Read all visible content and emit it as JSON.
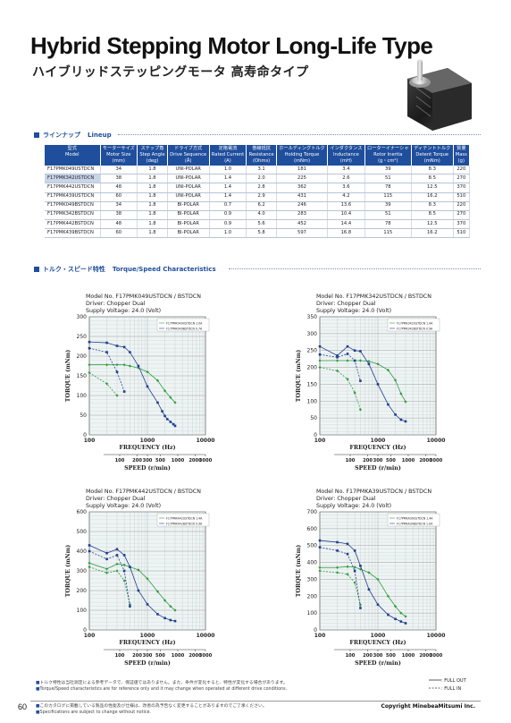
{
  "header": {
    "title_en": "Hybrid Stepping Motor Long-Life Type",
    "title_jp": "ハイブリッドステッピングモータ 高寿命タイプ",
    "photo_icon": "stepping-motor-photo"
  },
  "lineup": {
    "heading_jp": "ラインナップ",
    "heading_en": "Lineup",
    "columns": [
      {
        "jp": "型式",
        "en": "Model",
        "unit": ""
      },
      {
        "jp": "モーターサイズ",
        "en": "Motor Size",
        "unit": "(mm)"
      },
      {
        "jp": "ステップ角",
        "en": "Step Angle",
        "unit": "(deg)"
      },
      {
        "jp": "ドライブ方式",
        "en": "Drive Sequence",
        "unit": "(Ā)"
      },
      {
        "jp": "定格電流",
        "en": "Rated Current",
        "unit": "(A)"
      },
      {
        "jp": "巻線抵抗",
        "en": "Resistance",
        "unit": "(Ohms)"
      },
      {
        "jp": "ホールディングトルク",
        "en": "Holding Torque",
        "unit": "(mNm)"
      },
      {
        "jp": "インダクタンス",
        "en": "Inductance",
        "unit": "(mH)"
      },
      {
        "jp": "ローターイナーシャ",
        "en": "Rotor Inertia",
        "unit": "(g・cm²)"
      },
      {
        "jp": "ディテントトルク",
        "en": "Detent Torque",
        "unit": "(mNm)"
      },
      {
        "jp": "質量",
        "en": "Mass",
        "unit": "(g)"
      }
    ],
    "rows": [
      [
        "F17PMK049USTDCN",
        "34",
        "1.8",
        "UNI-POLAR",
        "1.0",
        "3.1",
        "181",
        "3.4",
        "39",
        "8.3",
        "220"
      ],
      [
        "F17PMK342USTDCN",
        "38",
        "1.8",
        "UNI-POLAR",
        "1.4",
        "2.0",
        "225",
        "2.6",
        "51",
        "8.5",
        "270"
      ],
      [
        "F17PMK442USTDCN",
        "48",
        "1.8",
        "UNI-POLAR",
        "1.4",
        "2.8",
        "362",
        "3.6",
        "78",
        "12.5",
        "370"
      ],
      [
        "F17PMK439USTDCN",
        "60",
        "1.8",
        "UNI-POLAR",
        "1.4",
        "2.9",
        "431",
        "4.2",
        "115",
        "16.2",
        "510"
      ],
      [
        "F17PMK049BSTDCN",
        "34",
        "1.8",
        "BI-POLAR",
        "0.7",
        "6.2",
        "246",
        "13.6",
        "39",
        "8.3",
        "220"
      ],
      [
        "F17PMK342BSTDCN",
        "38",
        "1.8",
        "BI-POLAR",
        "0.9",
        "4.0",
        "283",
        "10.4",
        "51",
        "8.5",
        "270"
      ],
      [
        "F17PMK442BSTDCN",
        "48",
        "1.8",
        "BI-POLAR",
        "0.9",
        "5.6",
        "452",
        "14.4",
        "78",
        "12.5",
        "370"
      ],
      [
        "F17PMK439BSTDCN",
        "60",
        "1.8",
        "BI-POLAR",
        "1.0",
        "5.8",
        "597",
        "16.8",
        "115",
        "16.2",
        "510"
      ]
    ],
    "highlight_row": 1
  },
  "torque_section": {
    "heading_jp": "トルク・スピード特性",
    "heading_en": "Torque/Speed Characteristics"
  },
  "colors": {
    "brand": "#1f4e9c",
    "uni_series": "#2e9b3e",
    "bi_series": "#1f3d8f"
  },
  "chart_data": [
    {
      "type": "line",
      "model": "Model No. F17PMK049USTDCN / BSTDCN",
      "driver": "Driver: Chopper Dual",
      "voltage": "Supply Voltage: 24.0 (Volt)",
      "xlabel": "FREQUENCY (Hz)",
      "x2label": "SPEED (r/min)",
      "ylabel": "TORQUE (mNm)",
      "x_scale": "log",
      "xlim": [
        100,
        10000
      ],
      "ylim": [
        0,
        300
      ],
      "yticks": [
        0,
        50,
        100,
        150,
        200,
        250,
        300
      ],
      "xticks": [
        "100",
        "1000",
        "10000"
      ],
      "speed_ticks": [
        "100",
        "200",
        "300",
        "500",
        "1000",
        "2000",
        "3000"
      ],
      "speed_values": [
        100,
        200,
        300,
        500,
        1000,
        2000,
        3000
      ],
      "legend": [
        "F17PMK049USTDCN 1.0A",
        "F17PMK049BSTDCN 0.7A"
      ],
      "series": [
        {
          "name": "UNI FULL OUT",
          "x": [
            100,
            200,
            300,
            400,
            500,
            700,
            1000,
            1500,
            2000,
            2500,
            3000
          ],
          "y": [
            178,
            178,
            178,
            178,
            175,
            170,
            160,
            138,
            112,
            95,
            82
          ]
        },
        {
          "name": "UNI FULL IN",
          "x": [
            100,
            200,
            300
          ],
          "y": [
            158,
            130,
            100
          ]
        },
        {
          "name": "BI FULL OUT",
          "x": [
            100,
            200,
            300,
            400,
            500,
            700,
            1000,
            1500,
            1800,
            2000,
            2200,
            2500,
            2800,
            3000
          ],
          "y": [
            236,
            234,
            226,
            223,
            210,
            175,
            123,
            82,
            60,
            48,
            40,
            33,
            27,
            23
          ]
        },
        {
          "name": "BI FULL IN",
          "x": [
            100,
            200,
            300,
            400
          ],
          "y": [
            220,
            210,
            160,
            110
          ]
        }
      ]
    },
    {
      "type": "line",
      "model": "Model No. F17PMK342USTDCN / BSTDCN",
      "driver": "Driver: Chopper Dual",
      "voltage": "Supply Voltage: 24.0 (Volt)",
      "xlabel": "FREQUENCY (Hz)",
      "x2label": "SPEED (r/min)",
      "ylabel": "TORQUE (mNm)",
      "x_scale": "log",
      "xlim": [
        100,
        10000
      ],
      "ylim": [
        0,
        350
      ],
      "yticks": [
        0,
        50,
        100,
        150,
        200,
        250,
        300,
        350
      ],
      "xticks": [
        "100",
        "1000",
        "10000"
      ],
      "speed_ticks": [
        "100",
        "200",
        "300",
        "500",
        "1000",
        "2000",
        "3000"
      ],
      "speed_values": [
        100,
        200,
        300,
        500,
        1000,
        2000,
        3000
      ],
      "legend": [
        "F17PMK342USTDCN 1.4A",
        "F17PMK342BSTDCN 0.9A"
      ],
      "series": [
        {
          "name": "UNI FULL OUT",
          "x": [
            100,
            200,
            300,
            400,
            500,
            700,
            1000,
            1500,
            2000,
            2500,
            3000
          ],
          "y": [
            220,
            220,
            220,
            220,
            220,
            218,
            210,
            192,
            162,
            122,
            98
          ]
        },
        {
          "name": "UNI FULL IN",
          "x": [
            100,
            200,
            300,
            400,
            500
          ],
          "y": [
            200,
            190,
            165,
            125,
            75
          ]
        },
        {
          "name": "BI FULL OUT",
          "x": [
            100,
            200,
            300,
            400,
            500,
            700,
            1000,
            1500,
            2000,
            2500,
            3000
          ],
          "y": [
            262,
            235,
            262,
            250,
            248,
            210,
            150,
            90,
            60,
            45,
            40
          ]
        },
        {
          "name": "BI FULL IN",
          "x": [
            100,
            200,
            300,
            400,
            500
          ],
          "y": [
            238,
            230,
            240,
            220,
            160
          ]
        }
      ]
    },
    {
      "type": "line",
      "model": "Model No. F17PMK442USTDCN / BSTDCN",
      "driver": "Driver: Chopper Dual",
      "voltage": "Supply Voltage: 24.0 (Volt)",
      "xlabel": "FREQUENCY (Hz)",
      "x2label": "SPEED (r/min)",
      "ylabel": "TORQUE (mNm)",
      "x_scale": "log",
      "xlim": [
        100,
        10000
      ],
      "ylim": [
        0,
        600
      ],
      "yticks": [
        0,
        100,
        200,
        300,
        400,
        500,
        600
      ],
      "xticks": [
        "100",
        "1000",
        "10000"
      ],
      "speed_ticks": [
        "100",
        "200",
        "300",
        "500",
        "1000",
        "2000",
        "3000"
      ],
      "speed_values": [
        100,
        200,
        300,
        500,
        1000,
        2000,
        3000
      ],
      "legend": [
        "F17PMK442USTDCN 1.4A",
        "F17PMK442BSTDCN 0.9A"
      ],
      "series": [
        {
          "name": "UNI FULL OUT",
          "x": [
            100,
            200,
            300,
            400,
            500,
            700,
            1000,
            1500,
            2000,
            2500,
            3000
          ],
          "y": [
            340,
            310,
            335,
            330,
            320,
            305,
            260,
            195,
            150,
            120,
            100
          ]
        },
        {
          "name": "UNI FULL IN",
          "x": [
            100,
            200,
            300,
            400,
            500
          ],
          "y": [
            320,
            290,
            300,
            250,
            130
          ]
        },
        {
          "name": "BI FULL OUT",
          "x": [
            100,
            200,
            300,
            400,
            500,
            700,
            1000,
            1500,
            2000,
            2500,
            3000
          ],
          "y": [
            430,
            390,
            410,
            380,
            320,
            200,
            130,
            80,
            60,
            50,
            45
          ]
        },
        {
          "name": "BI FULL IN",
          "x": [
            100,
            200,
            300,
            400,
            500
          ],
          "y": [
            400,
            360,
            380,
            300,
            120
          ]
        }
      ]
    },
    {
      "type": "line",
      "model": "Model No. F17PMKA39USTDCN / BSTDCN",
      "driver": "Driver: Chopper Dual",
      "voltage": "Supply Voltage: 24.0 (Volt)",
      "xlabel": "FREQUENCY (Hz)",
      "x2label": "SPEED (r/min)",
      "ylabel": "TORQUE (mNm)",
      "x_scale": "log",
      "xlim": [
        100,
        10000
      ],
      "ylim": [
        0,
        700
      ],
      "yticks": [
        0,
        100,
        200,
        300,
        400,
        500,
        600,
        700
      ],
      "xticks": [
        "100",
        "1000",
        "10000"
      ],
      "speed_ticks": [
        "100",
        "200",
        "300",
        "500",
        "1000",
        "2000",
        "3000"
      ],
      "speed_values": [
        100,
        200,
        300,
        500,
        1000,
        2000,
        3000
      ],
      "legend": [
        "F17PMKA39USTDCN 1.4A",
        "F17PMKA39BSTDCN 1.0A"
      ],
      "series": [
        {
          "name": "UNI FULL OUT",
          "x": [
            100,
            200,
            300,
            400,
            500,
            700,
            1000,
            1500,
            2000,
            2500,
            3000
          ],
          "y": [
            370,
            370,
            375,
            372,
            360,
            340,
            300,
            200,
            140,
            100,
            80
          ]
        },
        {
          "name": "UNI FULL IN",
          "x": [
            100,
            200,
            300,
            400,
            500
          ],
          "y": [
            350,
            340,
            330,
            280,
            150
          ]
        },
        {
          "name": "BI FULL OUT",
          "x": [
            100,
            200,
            300,
            400,
            500,
            700,
            1000,
            1500,
            2000,
            2500,
            3000
          ],
          "y": [
            530,
            520,
            510,
            470,
            380,
            240,
            150,
            90,
            65,
            50,
            40
          ]
        },
        {
          "name": "BI FULL IN",
          "x": [
            100,
            200,
            300,
            400,
            500
          ],
          "y": [
            490,
            470,
            450,
            350,
            130
          ]
        }
      ]
    }
  ],
  "legend_box": {
    "full_out": ": FULL OUT",
    "full_in": ": FULL IN"
  },
  "footnotes": {
    "note1": "トルク特性は当社測定による参考データで、保証値ではありません。また、条件が変化すると、特性が変化する場合があります。",
    "note2": "Torque/Speed characteristics are for reference only and it may change when operated at different drive conditions."
  },
  "footer": {
    "page_number": "60",
    "note1": "このカタログに掲載している製品の性能及び仕様は、改善の為予告なく変更することがありますのでご了承ください。",
    "note2": "Specifications are subject to change without notice.",
    "copyright": "Copyright MinebeaMitsumi Inc."
  }
}
